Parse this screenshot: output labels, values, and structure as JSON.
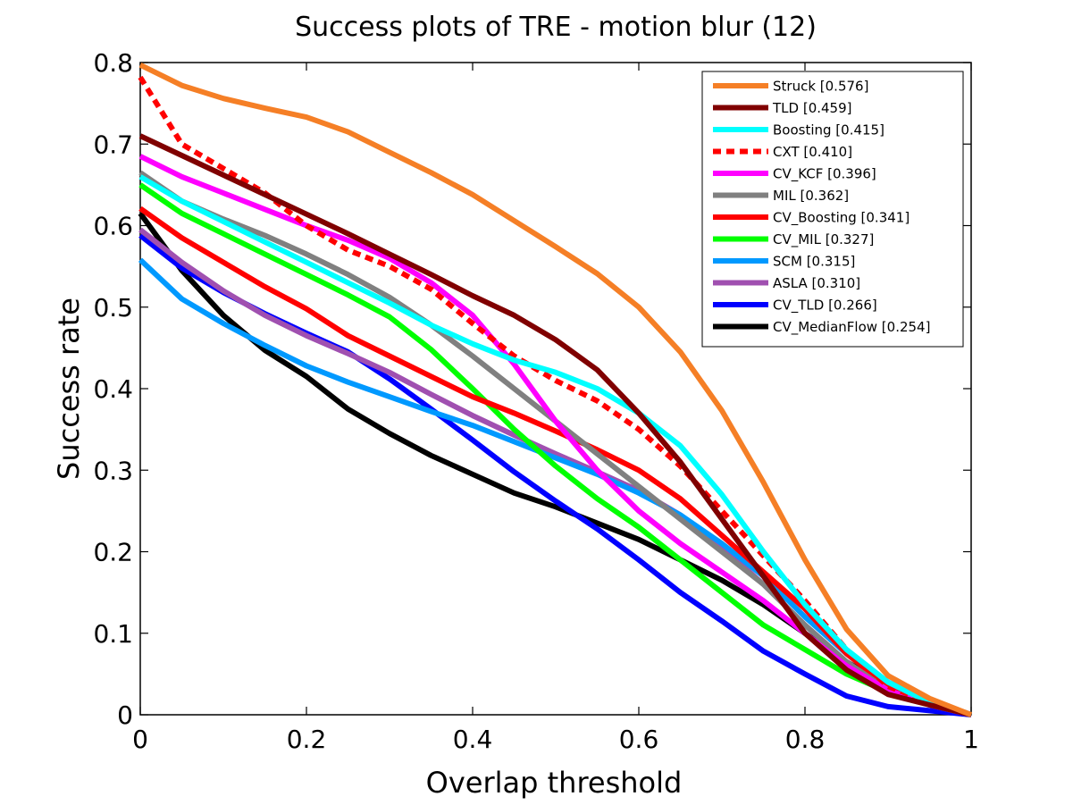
{
  "chart_data": {
    "type": "line",
    "title": "Success plots of TRE - motion blur (12)",
    "xlabel": "Overlap threshold",
    "ylabel": "Success rate",
    "xlim": [
      0,
      1
    ],
    "ylim": [
      0,
      0.8
    ],
    "xticks": [
      0,
      0.2,
      0.4,
      0.6,
      0.8,
      1
    ],
    "xtick_labels": [
      "0",
      "0.2",
      "0.4",
      "0.6",
      "0.8",
      "1"
    ],
    "yticks": [
      0,
      0.1,
      0.2,
      0.3,
      0.4,
      0.5,
      0.6,
      0.7,
      0.8
    ],
    "ytick_labels": [
      "0",
      "0.1",
      "0.2",
      "0.3",
      "0.4",
      "0.5",
      "0.6",
      "0.7",
      "0.8"
    ],
    "grid": false,
    "legend_position": "top-right",
    "x": [
      0,
      0.05,
      0.1,
      0.15,
      0.2,
      0.25,
      0.3,
      0.35,
      0.4,
      0.45,
      0.5,
      0.55,
      0.6,
      0.65,
      0.7,
      0.75,
      0.8,
      0.85,
      0.9,
      0.95,
      1.0
    ],
    "series": [
      {
        "name": "Struck [0.576]",
        "color": "#f57f26",
        "dashed": false,
        "values": [
          0.797,
          0.772,
          0.756,
          0.744,
          0.733,
          0.715,
          0.69,
          0.665,
          0.638,
          0.606,
          0.574,
          0.541,
          0.5,
          0.445,
          0.373,
          0.285,
          0.19,
          0.105,
          0.048,
          0.02,
          0.0
        ]
      },
      {
        "name": "TLD [0.459]",
        "color": "#800000",
        "dashed": false,
        "values": [
          0.71,
          0.686,
          0.662,
          0.638,
          0.614,
          0.59,
          0.565,
          0.54,
          0.514,
          0.49,
          0.46,
          0.423,
          0.37,
          0.31,
          0.24,
          0.17,
          0.1,
          0.055,
          0.025,
          0.012,
          0.0
        ]
      },
      {
        "name": "Boosting [0.415]",
        "color": "#00ffff",
        "dashed": false,
        "values": [
          0.66,
          0.63,
          0.605,
          0.58,
          0.555,
          0.53,
          0.505,
          0.478,
          0.455,
          0.435,
          0.42,
          0.4,
          0.37,
          0.33,
          0.27,
          0.2,
          0.135,
          0.08,
          0.04,
          0.015,
          0.0
        ]
      },
      {
        "name": "CXT [0.410]",
        "color": "#ff0000",
        "dashed": true,
        "values": [
          0.782,
          0.7,
          0.67,
          0.64,
          0.6,
          0.57,
          0.55,
          0.522,
          0.48,
          0.44,
          0.41,
          0.385,
          0.35,
          0.305,
          0.25,
          0.195,
          0.14,
          0.08,
          0.035,
          0.015,
          0.0
        ]
      },
      {
        "name": "CV_KCF [0.396]",
        "color": "#ff00ff",
        "dashed": false,
        "values": [
          0.685,
          0.66,
          0.64,
          0.62,
          0.6,
          0.582,
          0.56,
          0.53,
          0.49,
          0.43,
          0.36,
          0.3,
          0.25,
          0.21,
          0.175,
          0.14,
          0.1,
          0.06,
          0.03,
          0.012,
          0.0
        ]
      },
      {
        "name": "MIL [0.362]",
        "color": "#808080",
        "dashed": false,
        "values": [
          0.665,
          0.63,
          0.608,
          0.588,
          0.565,
          0.54,
          0.512,
          0.478,
          0.44,
          0.4,
          0.36,
          0.32,
          0.28,
          0.24,
          0.2,
          0.16,
          0.11,
          0.065,
          0.03,
          0.012,
          0.0
        ]
      },
      {
        "name": "CV_Boosting [0.341]",
        "color": "#ff0000",
        "dashed": false,
        "values": [
          0.621,
          0.585,
          0.555,
          0.525,
          0.498,
          0.465,
          0.44,
          0.415,
          0.39,
          0.37,
          0.348,
          0.325,
          0.3,
          0.265,
          0.22,
          0.175,
          0.13,
          0.075,
          0.035,
          0.015,
          0.0
        ]
      },
      {
        "name": "CV_MIL [0.327]",
        "color": "#00ff00",
        "dashed": false,
        "values": [
          0.65,
          0.615,
          0.59,
          0.565,
          0.54,
          0.515,
          0.488,
          0.448,
          0.4,
          0.35,
          0.305,
          0.265,
          0.23,
          0.19,
          0.15,
          0.11,
          0.08,
          0.05,
          0.028,
          0.012,
          0.0
        ]
      },
      {
        "name": "SCM [0.315]",
        "color": "#0099ff",
        "dashed": false,
        "values": [
          0.558,
          0.51,
          0.48,
          0.453,
          0.428,
          0.408,
          0.39,
          0.372,
          0.355,
          0.335,
          0.315,
          0.295,
          0.272,
          0.245,
          0.21,
          0.17,
          0.12,
          0.075,
          0.04,
          0.018,
          0.0
        ]
      },
      {
        "name": "ASLA [0.310]",
        "color": "#a050b0",
        "dashed": false,
        "values": [
          0.595,
          0.555,
          0.52,
          0.49,
          0.465,
          0.443,
          0.42,
          0.393,
          0.367,
          0.343,
          0.32,
          0.298,
          0.275,
          0.245,
          0.205,
          0.16,
          0.11,
          0.065,
          0.03,
          0.012,
          0.0
        ]
      },
      {
        "name": "CV_TLD [0.266]",
        "color": "#0000ff",
        "dashed": false,
        "values": [
          0.588,
          0.548,
          0.518,
          0.492,
          0.468,
          0.445,
          0.412,
          0.375,
          0.337,
          0.298,
          0.262,
          0.228,
          0.19,
          0.15,
          0.115,
          0.078,
          0.05,
          0.023,
          0.01,
          0.005,
          0.0
        ]
      },
      {
        "name": "CV_MedianFlow [0.254]",
        "color": "#000000",
        "dashed": false,
        "values": [
          0.615,
          0.545,
          0.49,
          0.447,
          0.415,
          0.375,
          0.345,
          0.318,
          0.295,
          0.272,
          0.255,
          0.235,
          0.215,
          0.19,
          0.165,
          0.135,
          0.1,
          0.065,
          0.035,
          0.018,
          0.0
        ]
      }
    ]
  }
}
